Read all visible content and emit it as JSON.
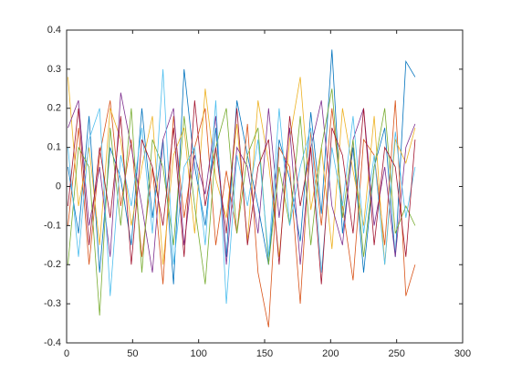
{
  "chart_data": {
    "type": "line",
    "x": [
      1,
      9,
      17,
      25,
      33,
      41,
      49,
      57,
      65,
      73,
      81,
      89,
      97,
      105,
      113,
      121,
      129,
      137,
      145,
      153,
      161,
      169,
      177,
      185,
      193,
      201,
      209,
      217,
      225,
      233,
      241,
      249,
      257,
      264
    ],
    "series": [
      {
        "color": "#0072BD",
        "values": [
          0.05,
          -0.12,
          0.18,
          -0.22,
          0.1,
          0.02,
          -0.15,
          0.2,
          -0.08,
          0.12,
          -0.25,
          0.3,
          0.05,
          -0.1,
          0.15,
          -0.18,
          0.22,
          0.08,
          -0.05,
          -0.2,
          0.12,
          0.02,
          -0.14,
          0.19,
          -0.07,
          0.35,
          -0.12,
          0.1,
          -0.22,
          0.05,
          0.15,
          -0.18,
          0.32,
          0.28
        ]
      },
      {
        "color": "#D95319",
        "values": [
          -0.1,
          0.15,
          -0.2,
          0.08,
          0.22,
          -0.05,
          0.12,
          -0.18,
          0.05,
          -0.25,
          0.18,
          -0.08,
          0.1,
          0.2,
          -0.15,
          0.04,
          -0.12,
          0.16,
          -0.22,
          -0.36,
          0.1,
          0.05,
          -0.3,
          0.14,
          -0.1,
          0.2,
          -0.05,
          -0.24,
          0.12,
          0.08,
          -0.15,
          0.22,
          -0.28,
          -0.2
        ]
      },
      {
        "color": "#EDB120",
        "values": [
          0.28,
          -0.05,
          0.1,
          -0.15,
          0.2,
          0.12,
          -0.1,
          0.05,
          0.18,
          -0.2,
          0.08,
          0.15,
          -0.12,
          0.25,
          0.02,
          -0.08,
          0.16,
          -0.14,
          0.22,
          0.06,
          -0.18,
          0.12,
          0.28,
          -0.06,
          0.1,
          -0.16,
          0.2,
          0.04,
          -0.1,
          0.18,
          -0.2,
          0.12,
          0.06,
          0.15
        ]
      },
      {
        "color": "#7E2F8E",
        "values": [
          0.15,
          0.22,
          -0.1,
          0.05,
          -0.18,
          0.24,
          0.1,
          -0.05,
          -0.22,
          0.12,
          0.2,
          -0.15,
          0.08,
          -0.02,
          0.18,
          -0.2,
          0.1,
          0.05,
          -0.12,
          0.2,
          -0.08,
          0.15,
          -0.2,
          0.1,
          0.22,
          -0.05,
          -0.15,
          0.12,
          0.2,
          -0.1,
          0.05,
          -0.18,
          0.1,
          0.16
        ]
      },
      {
        "color": "#77AC30",
        "values": [
          -0.2,
          0.1,
          0.05,
          -0.33,
          0.15,
          -0.1,
          0.2,
          -0.22,
          0.12,
          0.05,
          -0.15,
          0.18,
          -0.05,
          -0.25,
          0.1,
          0.2,
          -0.12,
          0.08,
          0.15,
          -0.2,
          0.05,
          -0.1,
          0.18,
          -0.15,
          0.1,
          0.25,
          -0.08,
          0.12,
          -0.18,
          0.05,
          0.2,
          -0.12,
          -0.05,
          -0.1
        ]
      },
      {
        "color": "#4DBEEE",
        "values": [
          0.1,
          -0.18,
          0.12,
          0.2,
          -0.28,
          0.08,
          -0.05,
          0.15,
          -0.12,
          0.3,
          -0.2,
          0.05,
          0.1,
          -0.15,
          0.22,
          -0.3,
          0.08,
          -0.05,
          0.12,
          -0.18,
          0.2,
          -0.1,
          0.05,
          0.15,
          -0.22,
          0.1,
          -0.05,
          0.18,
          -0.12,
          0.08,
          -0.2,
          0.14,
          -0.08,
          0.05
        ]
      },
      {
        "color": "#A2142F",
        "values": [
          -0.05,
          0.2,
          -0.15,
          0.1,
          -0.08,
          0.18,
          -0.2,
          0.12,
          0.05,
          -0.1,
          0.15,
          -0.18,
          0.22,
          -0.05,
          0.1,
          -0.12,
          0.2,
          -0.15,
          0.05,
          0.12,
          -0.2,
          0.18,
          -0.05,
          0.1,
          -0.25,
          0.15,
          0.08,
          -0.12,
          0.2,
          -0.15,
          0.1,
          0.05,
          -0.18,
          0.12
        ]
      }
    ],
    "xlim": [
      0,
      300
    ],
    "xticks": [
      0,
      50,
      100,
      150,
      200,
      250,
      300
    ],
    "ylim": [
      -0.4,
      0.4
    ],
    "yticks": [
      -0.4,
      -0.3,
      -0.2,
      -0.1,
      0,
      0.1,
      0.2,
      0.3,
      0.4
    ],
    "grid": false
  }
}
